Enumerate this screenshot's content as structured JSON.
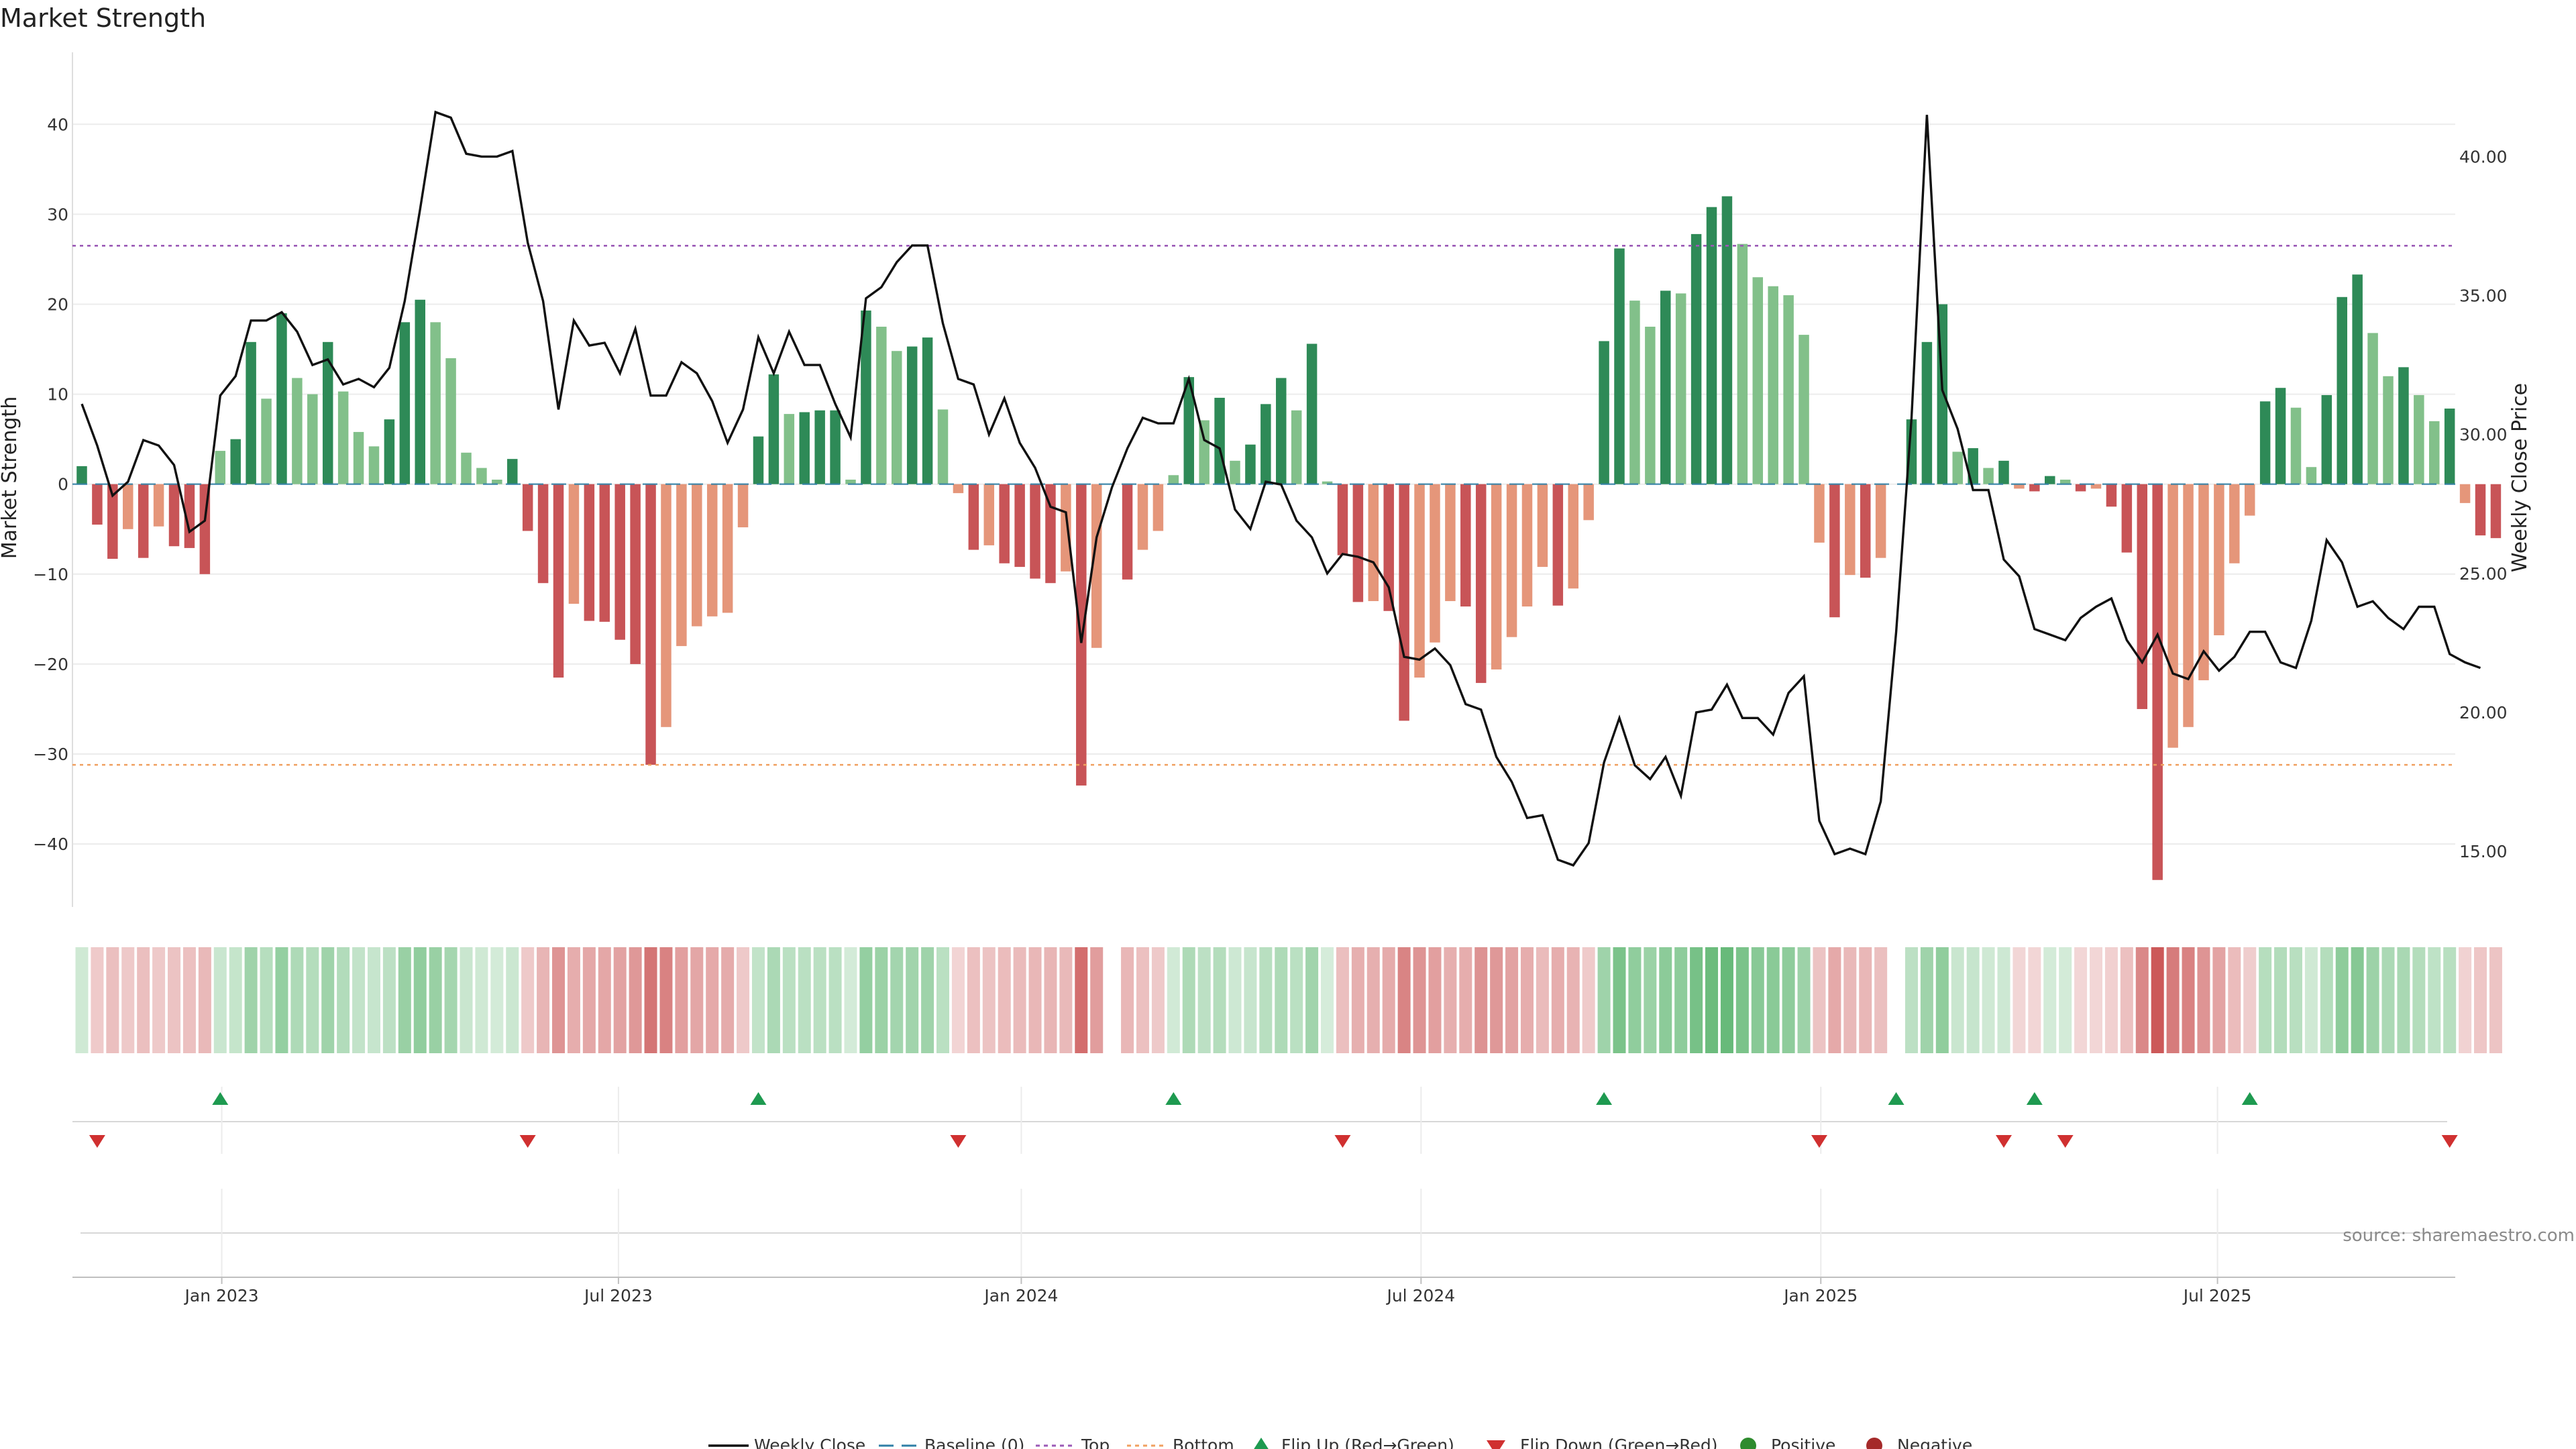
{
  "chart_data": {
    "type": "bar",
    "title": "Market Strength",
    "ylabel_left": "Market Strength",
    "ylabel_right": "Weekly Close Price",
    "ylim_left": [
      -47,
      48
    ],
    "ylim_right": [
      13.0,
      43.75
    ],
    "yticks_left": [
      40,
      30,
      20,
      10,
      0,
      -10,
      -20,
      -30,
      -40
    ],
    "yticks_left_labels": [
      "40",
      "30",
      "20",
      "10",
      "0",
      "−10",
      "−20",
      "−30",
      "−40"
    ],
    "yticks_right": [
      40.0,
      35.0,
      30.0,
      25.0,
      20.0,
      15.0
    ],
    "yticks_right_labels": [
      "40.00",
      "35.00",
      "30.00",
      "25.00",
      "20.00",
      "15.00"
    ],
    "x_week_range": [
      0,
      156
    ],
    "x_ticks": [
      {
        "label": "Jan 2023",
        "week": 9.1
      },
      {
        "label": "Jul 2023",
        "week": 34.9
      },
      {
        "label": "Jan 2024",
        "week": 61.1
      },
      {
        "label": "Jul 2024",
        "week": 87.1
      },
      {
        "label": "Jan 2025",
        "week": 113.1
      },
      {
        "label": "Jul 2025",
        "week": 138.9
      }
    ],
    "top_line": 26.5,
    "bottom_line": -31.2,
    "strength": [
      2,
      -4.5,
      -8.3,
      -5,
      -8.2,
      -4.7,
      -6.9,
      -7.1,
      -10,
      3.7,
      5,
      15.8,
      9.5,
      19,
      11.8,
      10,
      15.8,
      10.3,
      5.8,
      4.2,
      7.2,
      18,
      20.5,
      18,
      14,
      3.5,
      1.8,
      0.5,
      2.8,
      -5.2,
      -11,
      -21.5,
      -13.3,
      -15.2,
      -15.3,
      -17.3,
      -20,
      -31.2,
      -27,
      -18,
      -15.8,
      -14.7,
      -14.3,
      -4.8,
      5.3,
      12.2,
      7.8,
      8,
      8.2,
      8.2,
      0.5,
      19.3,
      17.5,
      14.8,
      15.3,
      16.3,
      8.3,
      -1,
      -7.3,
      -6.8,
      -8.8,
      -9.2,
      -10.5,
      -11,
      -9.7,
      -33.5,
      -18.2,
      0,
      -10.6,
      -7.3,
      -5.2,
      1,
      11.9,
      7.1,
      9.6,
      2.6,
      4.4,
      8.9,
      11.8,
      8.2,
      15.6,
      0.3,
      -7.9,
      -13.1,
      -13,
      -14.1,
      -26.3,
      -21.5,
      -17.6,
      -13,
      -13.6,
      -22.1,
      -20.6,
      -17,
      -13.6,
      -9.2,
      -13.5,
      -11.6,
      -4,
      15.9,
      26.2,
      20.4,
      17.5,
      21.5,
      21.2,
      27.8,
      30.8,
      32,
      26.7,
      23,
      22,
      21,
      16.6,
      -6.5,
      -14.8,
      -10.1,
      -10.4,
      -8.2,
      0,
      7.2,
      15.8,
      20,
      3.6,
      4,
      1.8,
      2.6,
      -0.5,
      -0.8,
      0.9,
      0.5,
      -0.8,
      -0.5,
      -2.5,
      -7.6,
      -25,
      -44,
      -29.3,
      -27,
      -21.8,
      -16.8,
      -8.8,
      -3.5,
      9.2,
      10.7,
      8.5,
      1.9,
      9.9,
      20.8,
      23.3,
      16.8,
      12,
      13,
      9.9,
      7,
      8.4,
      -2.1,
      -5.7,
      -6
    ],
    "close_price": [
      31.1,
      29.6,
      27.8,
      28.3,
      29.8,
      29.6,
      28.9,
      26.5,
      26.9,
      31.4,
      32.1,
      34.1,
      34.1,
      34.4,
      33.7,
      32.5,
      32.7,
      31.8,
      32,
      31.7,
      32.4,
      34.8,
      38.1,
      41.6,
      41.4,
      40.1,
      40,
      40,
      40.2,
      36.9,
      34.8,
      30.9,
      34.1,
      33.2,
      33.3,
      32.2,
      33.8,
      31.4,
      31.4,
      32.6,
      32.2,
      31.2,
      29.7,
      30.9,
      33.5,
      32.2,
      33.7,
      32.5,
      32.5,
      31.1,
      29.9,
      34.9,
      35.3,
      36.2,
      36.8,
      36.8,
      34,
      32,
      31.8,
      30,
      31.3,
      29.7,
      28.8,
      27.4,
      27.2,
      22.5,
      26.3,
      28.1,
      29.5,
      30.6,
      30.4,
      30.4,
      32,
      29.8,
      29.5,
      27.3,
      26.6,
      28.3,
      28.2,
      26.9,
      26.3,
      25,
      25.7,
      25.6,
      25.4,
      24.5,
      22,
      21.9,
      22.3,
      21.7,
      20.3,
      20.1,
      18.4,
      17.5,
      16.2,
      16.3,
      14.7,
      14.5,
      15.3,
      18.2,
      19.8,
      18.1,
      17.6,
      18.4,
      17,
      20,
      20.1,
      21,
      19.8,
      19.8,
      19.2,
      20.7,
      21.3,
      16.1,
      14.9,
      15.1,
      14.9,
      16.8,
      22.9,
      30.6,
      41.5,
      31.6,
      30.2,
      28,
      28,
      25.5,
      24.9,
      23,
      22.8,
      22.6,
      23.4,
      23.8,
      24.1,
      22.6,
      21.8,
      22.8,
      21.4,
      21.2,
      22.2,
      21.5,
      22,
      22.9,
      22.9,
      21.8,
      21.6,
      23.3,
      26.2,
      25.4,
      23.8,
      24,
      23.4,
      23,
      23.8,
      23.8,
      22.1,
      21.8,
      21.6
    ]
  },
  "flips_up_weeks": [
    9,
    44,
    71,
    99,
    118,
    127,
    141
  ],
  "flips_down_weeks": [
    1,
    29,
    57,
    82,
    113,
    125,
    129,
    154
  ],
  "legend": {
    "weekly_close": "Weekly Close",
    "baseline": "Baseline (0)",
    "top": "Top",
    "bottom": "Bottom",
    "flip_up": "Flip Up (Red→Green)",
    "flip_down": "Flip Down (Green→Red)",
    "positive": "Positive",
    "negative": "Negative"
  },
  "source": "source: sharemaestro.com",
  "colors": {
    "pos_strong": "#2e8a57",
    "pos_light": "#82c08a",
    "neg_strong": "#c85457",
    "neg_light": "#e5967a",
    "price_line": "#111111",
    "top_line": "#9b59b6",
    "bottom_line": "#f0a060",
    "baseline": "#2f7fa6",
    "flip_up": "#1e9a50",
    "flip_down": "#d03030",
    "positive_dot": "#2e8b2e",
    "negative_dot": "#a52a2a"
  }
}
